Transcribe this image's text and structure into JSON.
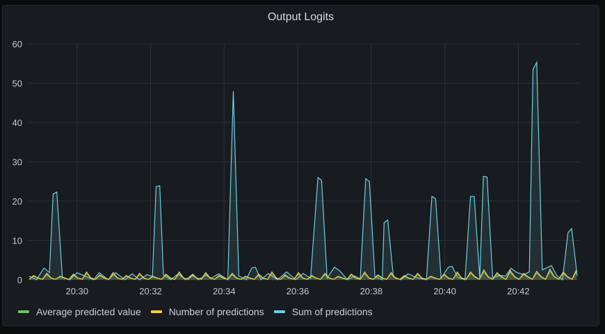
{
  "panel": {
    "title": "Output Logits"
  },
  "colors": {
    "avg": "#73bf69",
    "count": "#f2c94c",
    "sum": "#6ed0e0",
    "grid": "#2d3036",
    "bg": "#181b1f"
  },
  "legend": [
    {
      "label": "Average predicted value",
      "color": "#73bf69"
    },
    {
      "label": "Number of predictions",
      "color": "#f2c94c"
    },
    {
      "label": "Sum of predictions",
      "color": "#6ed0e0"
    }
  ],
  "chart_data": {
    "type": "line",
    "title": "Output Logits",
    "xlabel": "",
    "ylabel": "",
    "ylim": [
      0,
      60
    ],
    "yticks": [
      0,
      10,
      20,
      30,
      40,
      50,
      60
    ],
    "xticks": [
      "20:30",
      "20:32",
      "20:34",
      "20:36",
      "20:38",
      "20:40",
      "20:42"
    ],
    "xrange_minutes": [
      28.7,
      43.6
    ],
    "grid": true,
    "legend_position": "bottom",
    "series": [
      {
        "name": "Sum of predictions",
        "color": "#6ed0e0",
        "points": [
          [
            28.7,
            0.9
          ],
          [
            28.9,
            0
          ],
          [
            29.1,
            3
          ],
          [
            29.25,
            1.8
          ],
          [
            29.35,
            21.8
          ],
          [
            29.45,
            22.3
          ],
          [
            29.6,
            0.7
          ],
          [
            29.8,
            0
          ],
          [
            30.0,
            1.8
          ],
          [
            30.2,
            1
          ],
          [
            30.45,
            0
          ],
          [
            30.6,
            1.8
          ],
          [
            30.85,
            0
          ],
          [
            31.05,
            1.8
          ],
          [
            31.3,
            0
          ],
          [
            31.5,
            1.5
          ],
          [
            31.7,
            0
          ],
          [
            31.9,
            1.3
          ],
          [
            32.05,
            0.8
          ],
          [
            32.15,
            23.7
          ],
          [
            32.25,
            23.9
          ],
          [
            32.35,
            1.3
          ],
          [
            32.55,
            0
          ],
          [
            32.75,
            1.5
          ],
          [
            32.95,
            0
          ],
          [
            33.15,
            1.4
          ],
          [
            33.3,
            0
          ],
          [
            33.5,
            1.2
          ],
          [
            33.65,
            0.4
          ],
          [
            33.85,
            1.5
          ],
          [
            34.1,
            0
          ],
          [
            34.25,
            48
          ],
          [
            34.4,
            1
          ],
          [
            34.6,
            0
          ],
          [
            34.75,
            3
          ],
          [
            34.85,
            3.2
          ],
          [
            35.0,
            0
          ],
          [
            35.2,
            1.6
          ],
          [
            35.45,
            0
          ],
          [
            35.7,
            2
          ],
          [
            35.95,
            0
          ],
          [
            36.15,
            1.6
          ],
          [
            36.35,
            0.4
          ],
          [
            36.55,
            26
          ],
          [
            36.65,
            25.3
          ],
          [
            36.8,
            0.4
          ],
          [
            37.0,
            3.2
          ],
          [
            37.15,
            2.2
          ],
          [
            37.35,
            0
          ],
          [
            37.55,
            1
          ],
          [
            37.7,
            0.2
          ],
          [
            37.85,
            25.7
          ],
          [
            37.95,
            25
          ],
          [
            38.1,
            0.8
          ],
          [
            38.3,
            0
          ],
          [
            38.35,
            14.5
          ],
          [
            38.45,
            15.2
          ],
          [
            38.6,
            0.8
          ],
          [
            38.8,
            0
          ],
          [
            39.0,
            1.5
          ],
          [
            39.25,
            0.5
          ],
          [
            39.5,
            0
          ],
          [
            39.65,
            21.2
          ],
          [
            39.75,
            20.6
          ],
          [
            39.9,
            0.4
          ],
          [
            40.1,
            3.2
          ],
          [
            40.2,
            3.4
          ],
          [
            40.35,
            0.6
          ],
          [
            40.55,
            0
          ],
          [
            40.7,
            21.2
          ],
          [
            40.8,
            21.2
          ],
          [
            40.95,
            0.5
          ],
          [
            41.05,
            26.3
          ],
          [
            41.15,
            26.1
          ],
          [
            41.3,
            0.5
          ],
          [
            41.5,
            1.1
          ],
          [
            41.65,
            0.9
          ],
          [
            41.8,
            2.9
          ],
          [
            41.95,
            1.9
          ],
          [
            42.15,
            1.3
          ],
          [
            42.3,
            2
          ],
          [
            42.4,
            53.5
          ],
          [
            42.5,
            55.3
          ],
          [
            42.65,
            2.5
          ],
          [
            42.9,
            3.6
          ],
          [
            43.05,
            1
          ],
          [
            43.2,
            0
          ],
          [
            43.35,
            12
          ],
          [
            43.45,
            13
          ],
          [
            43.6,
            1
          ]
        ]
      },
      {
        "name": "Number of predictions",
        "color": "#f2c94c",
        "values_range": [
          0,
          3.3
        ]
      },
      {
        "name": "Average predicted value",
        "color": "#73bf69",
        "values_range": [
          0,
          1.5
        ]
      }
    ]
  }
}
